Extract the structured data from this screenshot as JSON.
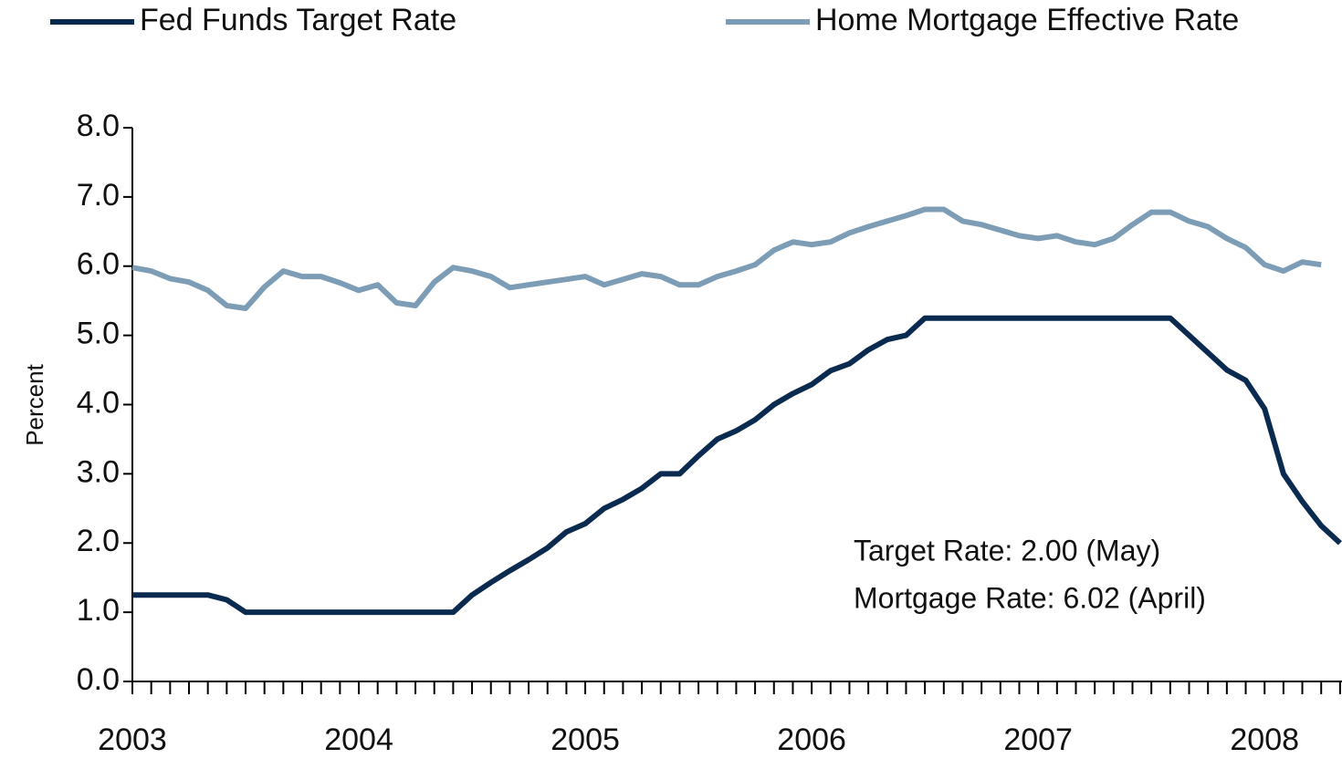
{
  "chart_data": {
    "type": "line",
    "y_label": "Percent",
    "annotations": [
      "Target Rate: 2.00 (May)",
      "Mortgage Rate: 6.02 (April)"
    ],
    "categories": [
      "2003",
      null,
      null,
      null,
      null,
      null,
      null,
      null,
      null,
      null,
      null,
      null,
      "2004",
      null,
      null,
      null,
      null,
      null,
      null,
      null,
      null,
      null,
      null,
      null,
      "2005",
      null,
      null,
      null,
      null,
      null,
      null,
      null,
      null,
      null,
      null,
      null,
      "2006",
      null,
      null,
      null,
      null,
      null,
      null,
      null,
      null,
      null,
      null,
      null,
      "2007",
      null,
      null,
      null,
      null,
      null,
      null,
      null,
      null,
      null,
      null,
      null,
      "2008",
      null,
      null,
      null,
      null
    ],
    "series": [
      {
        "name": "Fed Funds Target Rate",
        "color": "#0b2a50",
        "values": [
          1.25,
          1.25,
          1.25,
          1.25,
          1.25,
          1.18,
          1.0,
          1.0,
          1.0,
          1.0,
          1.0,
          1.0,
          1.0,
          1.0,
          1.0,
          1.0,
          1.0,
          1.0,
          1.25,
          1.43,
          1.6,
          1.76,
          1.93,
          2.16,
          2.28,
          2.5,
          2.63,
          2.79,
          3.0,
          3.0,
          3.26,
          3.5,
          3.62,
          3.78,
          4.0,
          4.16,
          4.29,
          4.49,
          4.59,
          4.79,
          4.94,
          5.0,
          5.25,
          5.25,
          5.25,
          5.25,
          5.25,
          5.25,
          5.25,
          5.25,
          5.25,
          5.25,
          5.25,
          5.25,
          5.25,
          5.25,
          5.0,
          4.75,
          4.5,
          4.35,
          3.94,
          3.0,
          2.6,
          2.25,
          2.0
        ]
      },
      {
        "name": "Home Mortgage Effective Rate",
        "color": "#7c9db5",
        "values": [
          5.98,
          5.93,
          5.82,
          5.77,
          5.65,
          5.43,
          5.39,
          5.7,
          5.93,
          5.85,
          5.85,
          5.76,
          5.65,
          5.73,
          5.47,
          5.43,
          5.77,
          5.98,
          5.93,
          5.85,
          5.69,
          5.73,
          5.77,
          5.81,
          5.85,
          5.73,
          5.81,
          5.89,
          5.85,
          5.73,
          5.73,
          5.85,
          5.93,
          6.02,
          6.23,
          6.35,
          6.31,
          6.35,
          6.48,
          6.57,
          6.65,
          6.73,
          6.82,
          6.82,
          6.65,
          6.6,
          6.52,
          6.44,
          6.4,
          6.44,
          6.35,
          6.31,
          6.4,
          6.6,
          6.78,
          6.78,
          6.65,
          6.57,
          6.4,
          6.27,
          6.02,
          5.93,
          6.06,
          6.02,
          null
        ]
      }
    ],
    "ylim": [
      0,
      8
    ],
    "yticks": [
      {
        "value": 0,
        "label": "0.0"
      },
      {
        "value": 1,
        "label": "1.0"
      },
      {
        "value": 2,
        "label": "2.0"
      },
      {
        "value": 3,
        "label": "3.0"
      },
      {
        "value": 4,
        "label": "4.0"
      },
      {
        "value": 5,
        "label": "5.0"
      },
      {
        "value": 6,
        "label": "6.0"
      },
      {
        "value": 7,
        "label": "7.0"
      },
      {
        "value": 8,
        "label": "8.0"
      }
    ],
    "legend": "top",
    "grid": false
  }
}
